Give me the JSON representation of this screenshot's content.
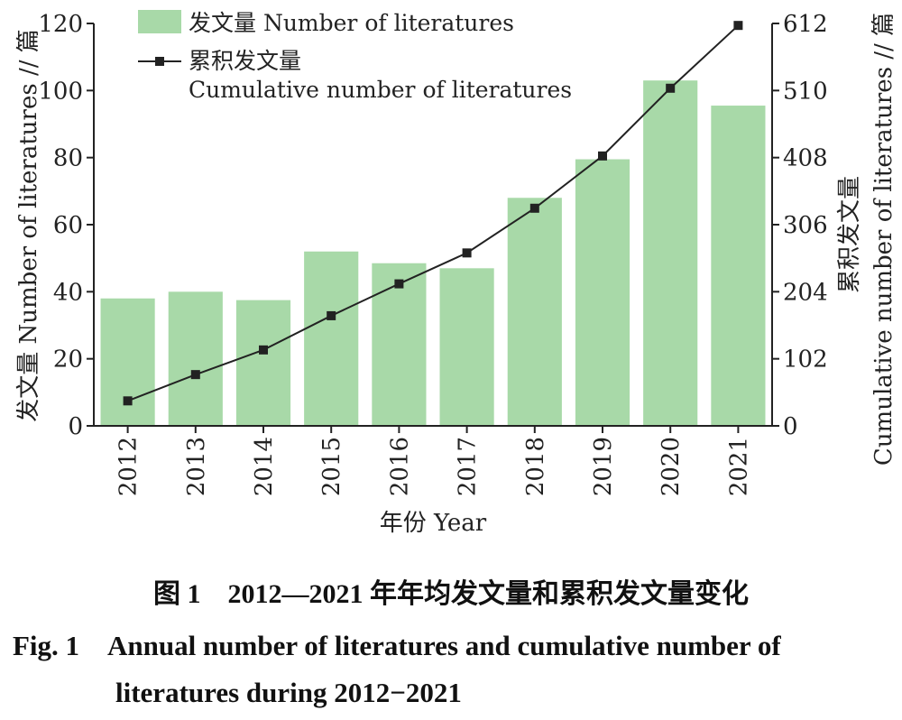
{
  "chart_data": {
    "type": "bar",
    "categories": [
      "2012",
      "2013",
      "2014",
      "2015",
      "2016",
      "2017",
      "2018",
      "2019",
      "2020",
      "2021"
    ],
    "series": [
      {
        "name": "发文量 Number of literatures",
        "kind": "bar",
        "axis": "left",
        "color": "#a8d9a8",
        "values": [
          38,
          40,
          37.5,
          52,
          48.5,
          47,
          68,
          79.5,
          103,
          95.5
        ]
      },
      {
        "name": "累积发文量 Cumulative number of literatures",
        "kind": "line",
        "axis": "right",
        "color": "#222222",
        "values": [
          38,
          78,
          115.5,
          167.5,
          216,
          263,
          331,
          410.5,
          513.5,
          609
        ]
      }
    ],
    "legend": {
      "bar_label": "发文量 Number of literatures",
      "line_label_cn": "累积发文量",
      "line_label_en": "Cumulative number of literatures",
      "position": "top-left"
    },
    "left_axis": {
      "label": "发文量 Number of literatures // 篇",
      "ylim": [
        0,
        120
      ],
      "ticks": [
        "0",
        "20",
        "40",
        "60",
        "80",
        "100",
        "120"
      ]
    },
    "right_axis": {
      "label_cn": "累积发文量",
      "label_en": "Cumulative number of literatures // 篇",
      "ylim": [
        0,
        612
      ],
      "ticks": [
        "0",
        "102",
        "204",
        "306",
        "408",
        "510",
        "612"
      ]
    },
    "xlabel": "年份 Year",
    "grid": false
  },
  "caption": {
    "cn": "图 1　2012—2021 年年均发文量和累积发文量变化",
    "en_line1": "Fig. 1　Annual number of literatures and cumulative number of",
    "en_line2": "literatures during 2012−2021"
  }
}
